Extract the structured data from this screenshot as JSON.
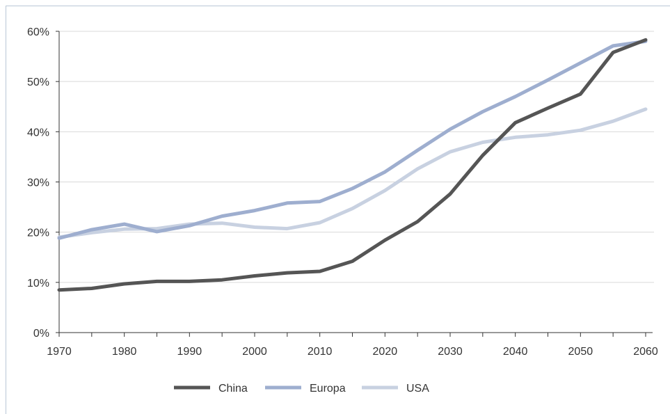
{
  "chart_data": {
    "type": "line",
    "title": "",
    "xlabel": "",
    "ylabel": "",
    "xlim": [
      1970,
      2060
    ],
    "ylim": [
      0,
      60
    ],
    "x_ticks": [
      1970,
      1980,
      1990,
      2000,
      2010,
      2020,
      2030,
      2040,
      2050,
      2060
    ],
    "y_ticks": [
      "0%",
      "10%",
      "20%",
      "30%",
      "40%",
      "50%",
      "60%"
    ],
    "grid": "horizontal",
    "legend_position": "bottom",
    "x": [
      1970,
      1975,
      1980,
      1985,
      1990,
      1995,
      2000,
      2005,
      2010,
      2015,
      2020,
      2025,
      2030,
      2035,
      2040,
      2045,
      2050,
      2055,
      2060
    ],
    "series": [
      {
        "name": "China",
        "color": "#555555",
        "values": [
          8.5,
          8.8,
          9.7,
          10.2,
          10.2,
          10.5,
          11.3,
          11.9,
          12.2,
          14.2,
          18.4,
          22.1,
          27.6,
          35.3,
          41.8,
          44.7,
          47.5,
          55.8,
          58.3
        ]
      },
      {
        "name": "Europa",
        "color": "#9eaecf",
        "values": [
          18.8,
          20.5,
          21.6,
          20.1,
          21.3,
          23.2,
          24.3,
          25.8,
          26.1,
          28.7,
          32.0,
          36.3,
          40.5,
          44.0,
          47.0,
          50.3,
          53.7,
          57.1,
          58.0
        ]
      },
      {
        "name": "USA",
        "color": "#c8d1e1",
        "values": [
          19.0,
          19.9,
          20.6,
          20.7,
          21.6,
          21.8,
          21.0,
          20.7,
          21.9,
          24.7,
          28.3,
          32.6,
          36.0,
          37.9,
          38.9,
          39.4,
          40.3,
          42.1,
          44.5
        ]
      }
    ]
  }
}
